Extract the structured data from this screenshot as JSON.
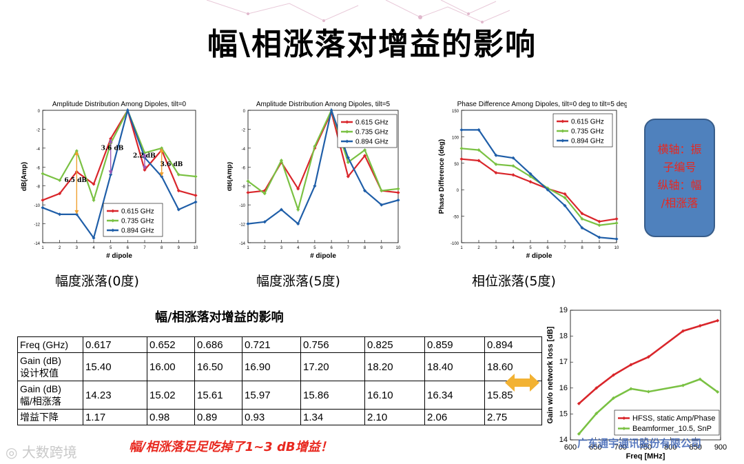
{
  "page": {
    "title": "幅\\相涨落对增益的影响",
    "captions": [
      "幅度涨落(0度)",
      "幅度涨落(5度)",
      "相位涨落(5度)"
    ],
    "note_lines": [
      "横轴：振",
      "子编号",
      "纵轴：幅",
      "/相涨落"
    ],
    "table_title": "幅/相涨落对增益的影响",
    "conclusion": "幅/相涨落足足吃掉了1~3 dB增益！",
    "watermark": "大数跨境",
    "watermark_logo": "广东通宇通讯股份有限公司",
    "colors": {
      "red": "#d9262b",
      "green": "#7ac143",
      "blue": "#1f5ea8",
      "orange": "#f0a030",
      "purple": "#9b59b6",
      "note_bg": "#4f81bd",
      "note_text": "#e8281f"
    }
  },
  "table": {
    "rows": [
      {
        "header": [
          "Freq (GHz)"
        ],
        "cells": [
          "0.617",
          "0.652",
          "0.686",
          "0.721",
          "0.756",
          "0.825",
          "0.859",
          "0.894"
        ]
      },
      {
        "header": [
          "Gain (dB)",
          "设计权值"
        ],
        "cells": [
          "15.40",
          "16.00",
          "16.50",
          "16.90",
          "17.20",
          "18.20",
          "18.40",
          "18.60"
        ]
      },
      {
        "header": [
          "Gain (dB)",
          "幅/相涨落"
        ],
        "cells": [
          "14.23",
          "15.02",
          "15.61",
          "15.97",
          "15.86",
          "16.10",
          "16.34",
          "15.85"
        ]
      },
      {
        "header": [
          "增益下降"
        ],
        "cells": [
          "1.17",
          "0.98",
          "0.89",
          "0.93",
          "1.34",
          "2.10",
          "2.06",
          "2.75"
        ]
      }
    ]
  },
  "chart_data": [
    {
      "type": "line",
      "title": "Amplitude Distribution Among Dipoles, tilt=0",
      "xlabel": "# dipole",
      "ylabel": "dB(Amp)",
      "xlim": [
        1,
        10
      ],
      "ylim": [
        -14,
        0
      ],
      "xticks": [
        1,
        2,
        3,
        4,
        5,
        6,
        7,
        8,
        9,
        10
      ],
      "yticks": [
        0,
        -2,
        -4,
        -6,
        -8,
        -10,
        -12,
        -14
      ],
      "x": [
        1,
        2,
        3,
        4,
        5,
        6,
        7,
        8,
        9,
        10
      ],
      "legend_position": "bottom-right",
      "series": [
        {
          "name": "0.615 GHz",
          "color": "#d9262b",
          "values": [
            -9.5,
            -8.8,
            -6.5,
            -7.8,
            -3.0,
            0,
            -6.3,
            -4.2,
            -8.5,
            -9.0
          ]
        },
        {
          "name": "0.735 GHz",
          "color": "#7ac143",
          "values": [
            -6.7,
            -7.4,
            -4.3,
            -9.5,
            -3.5,
            0,
            -4.5,
            -4.0,
            -6.8,
            -7.0
          ]
        },
        {
          "name": "0.894 GHz",
          "color": "#1f5ea8",
          "values": [
            -10.3,
            -11.0,
            -11.0,
            -13.5,
            -6.8,
            0,
            -5.0,
            -7.0,
            -10.5,
            -9.7
          ]
        }
      ],
      "annotations": [
        "6.5 dB",
        "3.6 dB",
        "2.2 dB",
        "3.6 dB"
      ]
    },
    {
      "type": "line",
      "title": "Amplitude Distribution Among Dipoles, tilt=5",
      "xlabel": "# dipole",
      "ylabel": "dB(Amp)",
      "xlim": [
        1,
        10
      ],
      "ylim": [
        -14,
        0
      ],
      "xticks": [
        1,
        2,
        3,
        4,
        5,
        6,
        7,
        8,
        9,
        10
      ],
      "yticks": [
        0,
        -2,
        -4,
        -6,
        -8,
        -10,
        -12,
        -14
      ],
      "x": [
        1,
        2,
        3,
        4,
        5,
        6,
        7,
        8,
        9,
        10
      ],
      "legend_position": "top-right",
      "series": [
        {
          "name": "0.615 GHz",
          "color": "#d9262b",
          "values": [
            -8.7,
            -8.5,
            -5.5,
            -8.3,
            -4.0,
            -0.2,
            -7.0,
            -4.8,
            -8.5,
            -8.7
          ]
        },
        {
          "name": "0.735 GHz",
          "color": "#7ac143",
          "values": [
            -7.5,
            -8.8,
            -5.3,
            -10.5,
            -3.8,
            0,
            -5.5,
            -4.2,
            -8.5,
            -8.3
          ]
        },
        {
          "name": "0.894 GHz",
          "color": "#1f5ea8",
          "values": [
            -12.0,
            -11.8,
            -10.5,
            -12.0,
            -8.0,
            0,
            -5.0,
            -8.5,
            -10.0,
            -9.5
          ]
        }
      ]
    },
    {
      "type": "line",
      "title": "Phase Difference Among Dipoles, tilt=0 deg to tilt=5 deg",
      "xlabel": "# dipole",
      "ylabel": "Phase Difference (deg)",
      "xlim": [
        1,
        10
      ],
      "ylim": [
        -100,
        150
      ],
      "xticks": [
        1,
        2,
        3,
        4,
        5,
        6,
        7,
        8,
        9,
        10
      ],
      "yticks": [
        150,
        100,
        50,
        0,
        -50,
        -100
      ],
      "x": [
        1,
        2,
        3,
        4,
        5,
        6,
        7,
        8,
        9,
        10
      ],
      "legend_position": "top-right",
      "series": [
        {
          "name": "0.615 GHz",
          "color": "#d9262b",
          "values": [
            58,
            55,
            32,
            28,
            15,
            2,
            -8,
            -45,
            -60,
            -55
          ]
        },
        {
          "name": "0.735 GHz",
          "color": "#7ac143",
          "values": [
            78,
            75,
            48,
            45,
            25,
            3,
            -15,
            -55,
            -67,
            -63
          ]
        },
        {
          "name": "0.894 GHz",
          "color": "#1f5ea8",
          "values": [
            113,
            113,
            65,
            60,
            30,
            0,
            -30,
            -72,
            -90,
            -93
          ]
        }
      ]
    },
    {
      "type": "line",
      "title": "",
      "xlabel": "Freq [MHz]",
      "ylabel": "Gain w/o network loss [dB]",
      "xlim": [
        600,
        900
      ],
      "ylim": [
        14,
        19
      ],
      "xticks": [
        600,
        650,
        700,
        750,
        800,
        850,
        900
      ],
      "yticks": [
        14,
        15,
        16,
        17,
        18,
        19
      ],
      "legend_position": "bottom-right",
      "series": [
        {
          "name": "HFSS, static Amp/Phase",
          "color": "#d9262b",
          "x": [
            617,
            652,
            686,
            721,
            756,
            825,
            859,
            894
          ],
          "values": [
            15.4,
            16.0,
            16.5,
            16.9,
            17.2,
            18.2,
            18.4,
            18.6
          ]
        },
        {
          "name": "Beamformer_10.5, SnP",
          "color": "#7ac143",
          "x": [
            617,
            652,
            686,
            721,
            756,
            825,
            859,
            894
          ],
          "values": [
            14.23,
            15.02,
            15.61,
            15.97,
            15.86,
            16.1,
            16.34,
            15.85
          ]
        }
      ]
    }
  ]
}
